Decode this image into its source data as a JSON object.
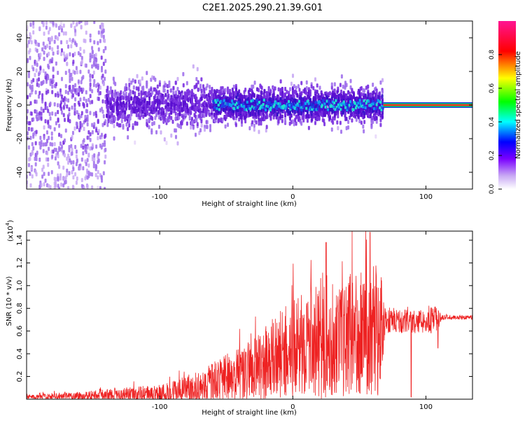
{
  "title": "C2E1.2025.290.21.39.G01",
  "colors": {
    "series": "#ee2222",
    "ridge": "#22cc55",
    "cold": "#6020d8",
    "light": "#c8a8f4"
  },
  "chart_data": [
    {
      "type": "heatmap",
      "name": "spectrogram",
      "xlabel": "Height of straight line (km)",
      "ylabel": "Frequency (Hz)",
      "xlim": [
        -200,
        135
      ],
      "ylim": [
        -50,
        50
      ],
      "xticks": [
        -100,
        0,
        100
      ],
      "yticks": [
        -40,
        -20,
        0,
        20,
        40
      ],
      "colorbar": {
        "label": "Normalized spectral amplitude",
        "range": [
          0,
          1
        ],
        "ticks": [
          0.0,
          0.2,
          0.4,
          0.6,
          0.8
        ],
        "tick_labels": [
          "0.0",
          "0.2",
          "0.4",
          "0.6",
          "0.8"
        ],
        "colormap": [
          "#ffffff",
          "#7a00ff",
          "#0000ff",
          "#00ffff",
          "#00ff00",
          "#ffff00",
          "#ff0000",
          "#ff1493"
        ]
      },
      "regions": [
        {
          "x": [
            -200,
            -140
          ],
          "description_level": 0.12,
          "freq_spread": 50
        },
        {
          "x": [
            -140,
            -60
          ],
          "description_level": 0.2,
          "freq_spread": 20
        },
        {
          "x": [
            -60,
            68
          ],
          "description_level": 0.3,
          "freq_spread": 15
        },
        {
          "x": [
            68,
            135
          ],
          "description_level": 0.75,
          "freq_spread": 2
        }
      ]
    },
    {
      "type": "line",
      "name": "snr",
      "xlabel": "Height of straight line (km)",
      "ylabel": "SNR (10 * v/v)",
      "y_multiplier": "(x10",
      "y_multiplier_exp": "4",
      "xlim": [
        -200,
        135
      ],
      "ylim": [
        0,
        1.48
      ],
      "xticks": [
        -100,
        0,
        100
      ],
      "yticks": [
        0.2,
        0.4,
        0.6,
        0.8,
        1.0,
        1.2,
        1.4
      ],
      "ytick_labels": [
        "0.2",
        "0.4",
        "0.6",
        "0.8",
        "1.0",
        "1.2",
        "1.4"
      ],
      "envelope": [
        {
          "x": -200,
          "base": 0.02,
          "amp": 0.02
        },
        {
          "x": -150,
          "base": 0.03,
          "amp": 0.05
        },
        {
          "x": -100,
          "base": 0.05,
          "amp": 0.08
        },
        {
          "x": -70,
          "base": 0.1,
          "amp": 0.15
        },
        {
          "x": -50,
          "base": 0.18,
          "amp": 0.22
        },
        {
          "x": -25,
          "base": 0.28,
          "amp": 0.3
        },
        {
          "x": -10,
          "base": 0.38,
          "amp": 0.4
        },
        {
          "x": 10,
          "base": 0.5,
          "amp": 0.45
        },
        {
          "x": 25,
          "base": 0.55,
          "amp": 0.6
        },
        {
          "x": 30,
          "base": 0.45,
          "amp": 0.45
        },
        {
          "x": 45,
          "base": 0.6,
          "amp": 0.55
        },
        {
          "x": 65,
          "base": 0.62,
          "amp": 0.6
        },
        {
          "x": 70,
          "base": 0.7,
          "amp": 0.12
        },
        {
          "x": 90,
          "base": 0.68,
          "amp": 0.1
        },
        {
          "x": 108,
          "base": 0.7,
          "amp": 0.12
        },
        {
          "x": 112,
          "base": 0.72,
          "amp": 0.02
        },
        {
          "x": 135,
          "base": 0.72,
          "amp": 0.02
        }
      ],
      "notable_points": [
        {
          "x": 58,
          "y": 1.47
        },
        {
          "x": 25,
          "y": 1.38
        },
        {
          "x": 89,
          "y": 0.02
        },
        {
          "x": 109,
          "y": 0.45
        }
      ]
    }
  ]
}
